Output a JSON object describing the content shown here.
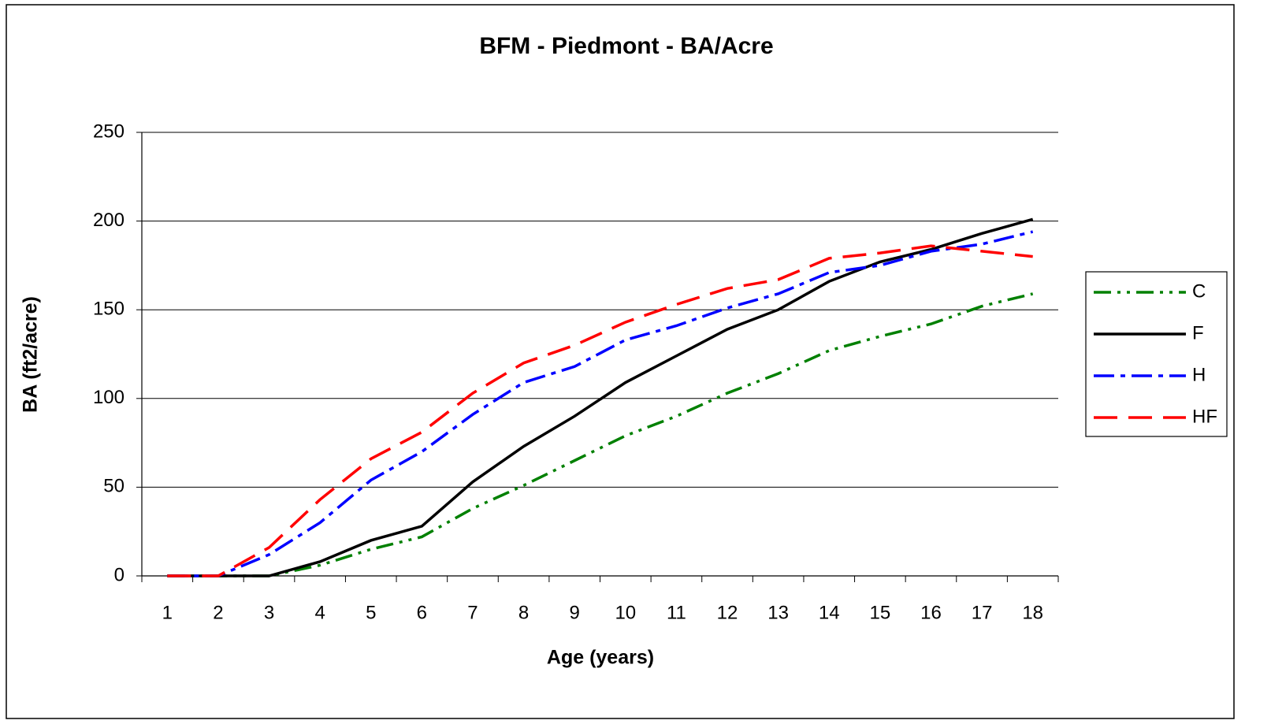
{
  "chart_data": {
    "type": "line",
    "title": "BFM - Piedmont - BA/Acre",
    "x_label": "Age (years)",
    "y_label": "BA (ft2/acre)",
    "categories": [
      "1",
      "2",
      "3",
      "4",
      "5",
      "6",
      "7",
      "8",
      "9",
      "10",
      "11",
      "12",
      "13",
      "14",
      "15",
      "16",
      "17",
      "18"
    ],
    "series": [
      {
        "name": "C",
        "color": "#008000",
        "dash": "dash-dot-dot",
        "values": [
          0,
          0,
          0,
          6,
          15,
          22,
          38,
          51,
          65,
          79,
          90,
          103,
          114,
          127,
          135,
          142,
          152,
          159
        ]
      },
      {
        "name": "F",
        "color": "#000000",
        "dash": "solid",
        "values": [
          0,
          0,
          0,
          8,
          20,
          28,
          53,
          73,
          90,
          109,
          124,
          139,
          150,
          166,
          177,
          184,
          193,
          201
        ]
      },
      {
        "name": "H",
        "color": "#0000ff",
        "dash": "dash-dot",
        "values": [
          0,
          0,
          12,
          30,
          54,
          70,
          91,
          109,
          118,
          133,
          141,
          151,
          159,
          171,
          175,
          183,
          187,
          194
        ]
      },
      {
        "name": "HF",
        "color": "#ff0000",
        "dash": "long-dash",
        "values": [
          0,
          0,
          16,
          43,
          66,
          81,
          103,
          120,
          130,
          143,
          153,
          162,
          167,
          179,
          182,
          186,
          183,
          180
        ]
      }
    ],
    "ylim": [
      0,
      250
    ],
    "yticks": [
      0,
      50,
      100,
      150,
      200,
      250
    ],
    "grid": true,
    "legend": "right"
  }
}
